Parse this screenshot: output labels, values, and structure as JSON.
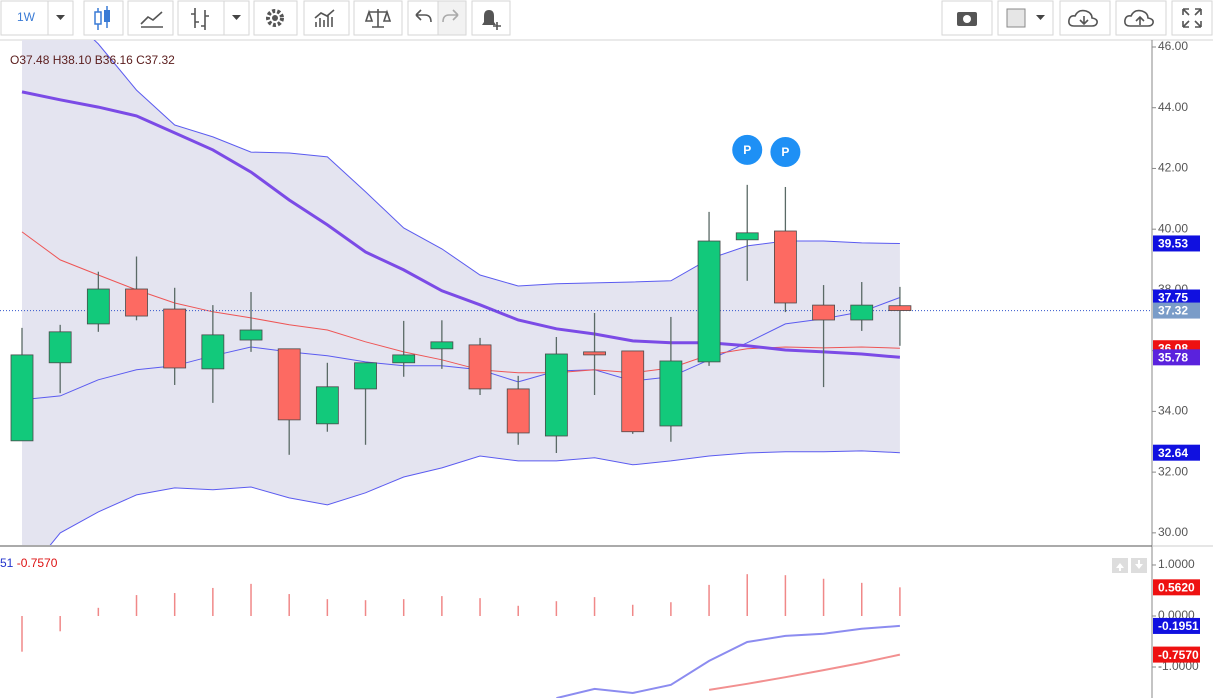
{
  "toolbar": {
    "interval": "1W"
  },
  "chart_data": [
    {
      "type": "candlestick",
      "ohlc_legend": {
        "labels": [
          "O",
          "H",
          "B",
          "C"
        ],
        "values": [
          37.48,
          38.1,
          36.16,
          37.32
        ],
        "value_labels": [
          "37.48",
          "38.10",
          "36.16",
          "37.32"
        ]
      },
      "open": [
        33.03,
        35.6,
        36.88,
        38.03,
        37.37,
        35.4,
        36.35,
        36.06,
        33.59,
        34.74,
        35.6,
        36.06,
        36.19,
        34.74,
        33.19,
        35.96,
        35.99,
        33.52,
        35.63,
        39.65,
        39.94,
        37.5,
        37.01,
        37.48
      ],
      "high": [
        36.75,
        36.85,
        38.6,
        39.1,
        38.07,
        37.5,
        37.93,
        36.06,
        35.6,
        35.6,
        36.98,
        37.0,
        36.42,
        35.17,
        36.45,
        37.24,
        35.99,
        37.11,
        40.57,
        41.46,
        41.39,
        38.16,
        38.26,
        38.1
      ],
      "low": [
        33.03,
        34.6,
        36.62,
        37.0,
        34.87,
        34.28,
        35.96,
        32.57,
        33.33,
        32.9,
        35.14,
        35.4,
        34.54,
        32.9,
        32.63,
        34.54,
        33.26,
        33.0,
        35.5,
        38.3,
        37.27,
        34.8,
        36.65,
        36.16
      ],
      "close": [
        35.86,
        36.62,
        38.03,
        37.14,
        35.43,
        36.52,
        36.68,
        33.72,
        34.81,
        35.6,
        35.86,
        36.29,
        34.74,
        33.29,
        35.89,
        35.86,
        33.33,
        35.66,
        39.61,
        39.88,
        37.57,
        37.01,
        37.5,
        37.32
      ],
      "up_color": "#12c97b",
      "down_color": "#fd6a62",
      "band": {
        "color": "#5b5bf0",
        "fill": "#e4e4f0",
        "upper": [
          48.5,
          47.3,
          46.1,
          44.58,
          43.43,
          43.04,
          42.54,
          42.51,
          42.38,
          41.23,
          40.04,
          39.35,
          38.49,
          38.13,
          38.2,
          38.23,
          38.26,
          38.3,
          39.02,
          39.45,
          39.61,
          39.61,
          39.55,
          39.53
        ],
        "middle": [
          34.38,
          34.51,
          35.04,
          35.37,
          35.5,
          35.83,
          36.12,
          35.96,
          35.83,
          35.63,
          35.5,
          35.5,
          35.37,
          34.97,
          35.33,
          35.37,
          35.0,
          35.14,
          35.7,
          36.26,
          36.88,
          37.05,
          37.28,
          37.75
        ],
        "lower": [
          28.45,
          30.0,
          30.69,
          31.25,
          31.48,
          31.42,
          31.51,
          31.15,
          30.92,
          31.32,
          31.84,
          32.14,
          32.53,
          32.37,
          32.37,
          32.47,
          32.24,
          32.37,
          32.53,
          32.63,
          32.67,
          32.67,
          32.7,
          32.64
        ]
      },
      "lines": [
        {
          "color": "#ee5555",
          "values": [
            39.91,
            38.99,
            38.49,
            38.0,
            37.57,
            37.28,
            37.08,
            36.85,
            36.68,
            36.29,
            35.96,
            35.7,
            35.37,
            35.27,
            35.27,
            35.37,
            35.27,
            35.43,
            35.86,
            36.06,
            36.12,
            36.09,
            36.12,
            36.08
          ]
        },
        {
          "color": "#7b4be6",
          "values": [
            44.52,
            44.26,
            44.02,
            43.73,
            43.17,
            42.61,
            41.88,
            40.96,
            40.14,
            39.25,
            38.66,
            37.97,
            37.51,
            37.01,
            36.72,
            36.55,
            36.32,
            36.26,
            36.26,
            36.16,
            36.02,
            35.96,
            35.89,
            35.78
          ]
        }
      ],
      "annotations": [
        {
          "text": "P",
          "index": 19
        },
        {
          "text": "P",
          "index": 20
        }
      ],
      "ylim": [
        29.6,
        46.23
      ],
      "yticks": [
        {
          "value": 30,
          "label": "30.00"
        },
        {
          "value": 32,
          "label": "32.00"
        },
        {
          "value": 34,
          "label": "34.00"
        },
        {
          "value": 36,
          "label": "36.00"
        },
        {
          "value": 38,
          "label": "38.00"
        },
        {
          "value": 40,
          "label": "40.00"
        },
        {
          "value": 42,
          "label": "42.00"
        },
        {
          "value": 44,
          "label": "44.00"
        },
        {
          "value": 46,
          "label": "46.00"
        }
      ],
      "price_labels": [
        {
          "value": 39.53,
          "color": "#1010e0"
        },
        {
          "value": 37.75,
          "color": "#1010e0"
        },
        {
          "value": 37.32,
          "color": "#7a9cc8"
        },
        {
          "value": 36.08,
          "color": "#ee1111"
        },
        {
          "value": 35.78,
          "color": "#5a22dd"
        },
        {
          "value": 32.64,
          "color": "#1010e0"
        }
      ],
      "current_price_color": "#3355cc"
    },
    {
      "type": "bar",
      "header": [
        {
          "text": "51",
          "color": "#2233cc"
        },
        {
          "text": "-0.7570",
          "color": "#dd1111"
        }
      ],
      "values": [
        -0.7,
        -0.3,
        0.16,
        0.41,
        0.45,
        0.55,
        0.63,
        0.43,
        0.33,
        0.31,
        0.33,
        0.39,
        0.35,
        0.2,
        0.29,
        0.37,
        0.22,
        0.27,
        0.61,
        0.82,
        0.8,
        0.73,
        0.65,
        0.562
      ],
      "color": "#f08888",
      "lines": [
        {
          "color": "#8c8cf0",
          "values": [
            null,
            null,
            null,
            null,
            null,
            null,
            null,
            null,
            null,
            null,
            null,
            null,
            null,
            null,
            -1.61,
            -1.43,
            -1.51,
            -1.35,
            -0.88,
            -0.51,
            -0.39,
            -0.35,
            -0.25,
            -0.1951
          ]
        },
        {
          "color": "#f29090",
          "values": [
            null,
            null,
            null,
            null,
            null,
            null,
            null,
            null,
            null,
            null,
            null,
            null,
            null,
            null,
            null,
            null,
            null,
            null,
            -1.45,
            -1.33,
            -1.2,
            -1.06,
            -0.92,
            -0.757
          ]
        }
      ],
      "ylim": [
        -1.608,
        1.333
      ],
      "yticks": [
        {
          "value": 1,
          "label": "1.0000"
        },
        {
          "value": 0,
          "label": "0.0000"
        },
        {
          "value": -1,
          "label": "-1.0000"
        }
      ],
      "price_labels": [
        {
          "value": 0.562,
          "label": "0.5620",
          "color": "#ee1111"
        },
        {
          "value": -0.1951,
          "label": "-0.1951",
          "color": "#1010e0"
        },
        {
          "value": -0.757,
          "label": "-0.7570",
          "color": "#ee1111"
        }
      ]
    }
  ]
}
